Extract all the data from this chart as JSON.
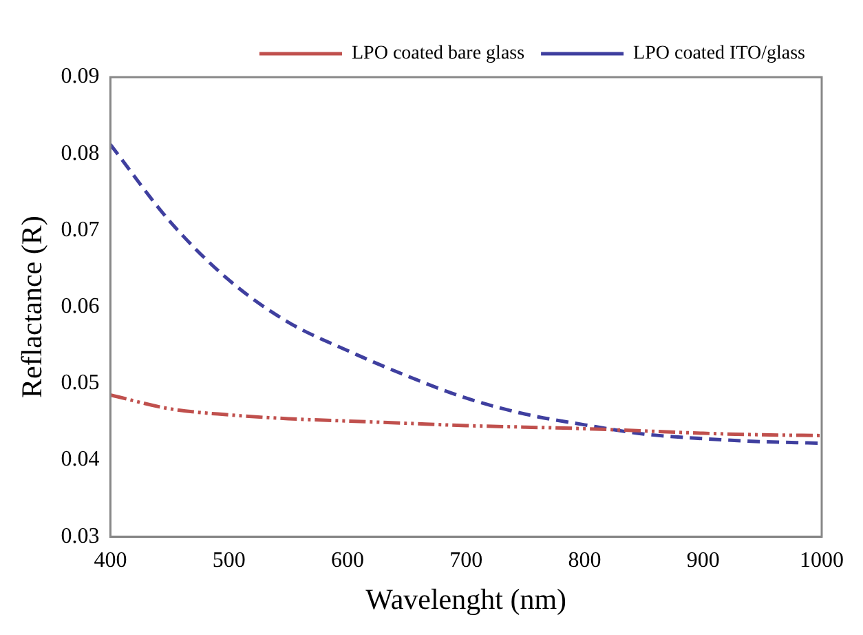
{
  "chart_data": {
    "type": "line",
    "xlabel": "Wavelenght (nm)",
    "ylabel": "Reflactance (R)",
    "xlim": [
      400,
      1000
    ],
    "xticks": [
      400,
      500,
      600,
      700,
      800,
      900,
      1000
    ],
    "ylim": [
      0.03,
      0.09
    ],
    "yticks": [
      0.03,
      0.04,
      0.05,
      0.06,
      0.07,
      0.08,
      0.09
    ],
    "grid": false,
    "legend": "top right",
    "marker": "none",
    "x": [
      400,
      450,
      500,
      550,
      600,
      650,
      700,
      750,
      800,
      850,
      900,
      950,
      1000
    ],
    "series": [
      {
        "name": "LPO coated bare glass",
        "color": "#c0504d",
        "line_style": "dotted",
        "values": [
          0.0485,
          0.0467,
          0.0459,
          0.0454,
          0.0451,
          0.0448,
          0.0445,
          0.0443,
          0.0441,
          0.0438,
          0.0435,
          0.0433,
          0.0432
        ]
      },
      {
        "name": "LPO coated ITO/glass",
        "color": "#3f3f9f",
        "line_style": "dashed",
        "values": [
          0.0812,
          0.0712,
          0.0635,
          0.058,
          0.0543,
          0.051,
          0.0481,
          0.046,
          0.0446,
          0.0434,
          0.0428,
          0.0424,
          0.0422
        ]
      }
    ]
  }
}
